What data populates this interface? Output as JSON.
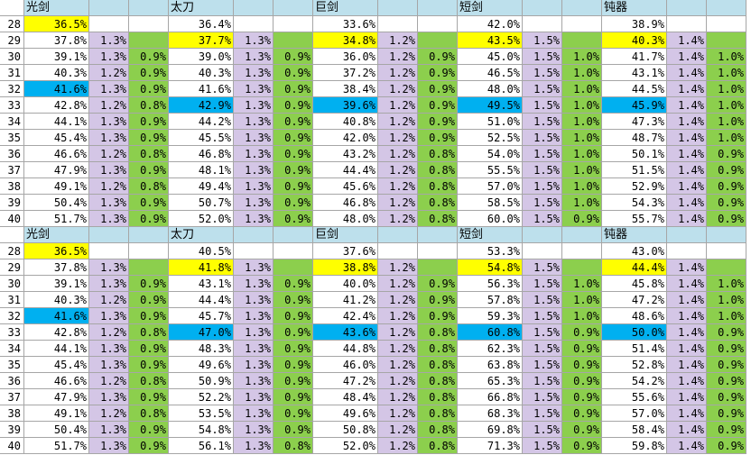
{
  "colors": {
    "header": "#bde0ec",
    "yellow": "#ffff00",
    "blue": "#00b0f0",
    "purple": "#d4c6e6",
    "green": "#8ccf4d",
    "white": "#ffffff"
  },
  "sections": [
    {
      "weapons": [
        {
          "name": "光剑",
          "values": [
            "36.5%",
            "37.8%",
            "39.1%",
            "40.3%",
            "41.6%",
            "42.8%",
            "44.1%",
            "45.4%",
            "46.6%",
            "47.9%",
            "49.1%",
            "50.4%",
            "51.7%"
          ],
          "col2": [
            "",
            "1.3%",
            "1.3%",
            "1.2%",
            "1.3%",
            "1.2%",
            "1.3%",
            "1.3%",
            "1.2%",
            "1.3%",
            "1.2%",
            "1.3%",
            "1.3%"
          ],
          "col3": [
            "",
            "",
            "0.9%",
            "0.9%",
            "0.9%",
            "0.8%",
            "0.9%",
            "0.9%",
            "0.8%",
            "0.9%",
            "0.8%",
            "0.9%",
            "0.9%"
          ],
          "yellow_row": 0,
          "blue_row": 4
        },
        {
          "name": "太刀",
          "values": [
            "36.4%",
            "37.7%",
            "39.0%",
            "40.3%",
            "41.6%",
            "42.9%",
            "44.2%",
            "45.5%",
            "46.8%",
            "48.1%",
            "49.4%",
            "50.7%",
            "52.0%"
          ],
          "col2": [
            "",
            "1.3%",
            "1.3%",
            "1.3%",
            "1.3%",
            "1.3%",
            "1.3%",
            "1.3%",
            "1.3%",
            "1.3%",
            "1.3%",
            "1.3%",
            "1.3%"
          ],
          "col3": [
            "",
            "",
            "0.9%",
            "0.9%",
            "0.9%",
            "0.9%",
            "0.9%",
            "0.9%",
            "0.9%",
            "0.9%",
            "0.9%",
            "0.9%",
            "0.9%"
          ],
          "yellow_row": 1,
          "blue_row": 5
        },
        {
          "name": "巨剑",
          "values": [
            "33.6%",
            "34.8%",
            "36.0%",
            "37.2%",
            "38.4%",
            "39.6%",
            "40.8%",
            "42.0%",
            "43.2%",
            "44.4%",
            "45.6%",
            "46.8%",
            "48.0%"
          ],
          "col2": [
            "",
            "1.2%",
            "1.2%",
            "1.2%",
            "1.2%",
            "1.2%",
            "1.2%",
            "1.2%",
            "1.2%",
            "1.2%",
            "1.2%",
            "1.2%",
            "1.2%"
          ],
          "col3": [
            "",
            "",
            "0.9%",
            "0.9%",
            "0.9%",
            "0.9%",
            "0.9%",
            "0.9%",
            "0.8%",
            "0.8%",
            "0.8%",
            "0.8%",
            "0.8%"
          ],
          "yellow_row": 1,
          "blue_row": 5
        },
        {
          "name": "短剑",
          "values": [
            "42.0%",
            "43.5%",
            "45.0%",
            "46.5%",
            "48.0%",
            "49.5%",
            "51.0%",
            "52.5%",
            "54.0%",
            "55.5%",
            "57.0%",
            "58.5%",
            "60.0%"
          ],
          "col2": [
            "",
            "1.5%",
            "1.5%",
            "1.5%",
            "1.5%",
            "1.5%",
            "1.5%",
            "1.5%",
            "1.5%",
            "1.5%",
            "1.5%",
            "1.5%",
            "1.5%"
          ],
          "col3": [
            "",
            "",
            "1.0%",
            "1.0%",
            "1.0%",
            "1.0%",
            "1.0%",
            "1.0%",
            "1.0%",
            "1.0%",
            "1.0%",
            "1.0%",
            "0.9%"
          ],
          "yellow_row": 1,
          "blue_row": 5
        },
        {
          "name": "钝器",
          "values": [
            "38.9%",
            "40.3%",
            "41.7%",
            "43.1%",
            "44.5%",
            "45.9%",
            "47.3%",
            "48.7%",
            "50.1%",
            "51.5%",
            "52.9%",
            "54.3%",
            "55.7%"
          ],
          "col2": [
            "",
            "1.4%",
            "1.4%",
            "1.4%",
            "1.4%",
            "1.4%",
            "1.4%",
            "1.4%",
            "1.4%",
            "1.4%",
            "1.4%",
            "1.4%",
            "1.4%"
          ],
          "col3": [
            "",
            "",
            "1.0%",
            "1.0%",
            "1.0%",
            "1.0%",
            "1.0%",
            "1.0%",
            "0.9%",
            "0.9%",
            "0.9%",
            "0.9%",
            "0.9%"
          ],
          "yellow_row": 1,
          "blue_row": 5
        }
      ]
    },
    {
      "weapons": [
        {
          "name": "光剑",
          "values": [
            "36.5%",
            "37.8%",
            "39.1%",
            "40.3%",
            "41.6%",
            "42.8%",
            "44.1%",
            "45.4%",
            "46.6%",
            "47.9%",
            "49.1%",
            "50.4%",
            "51.7%"
          ],
          "col2": [
            "",
            "1.3%",
            "1.3%",
            "1.2%",
            "1.3%",
            "1.2%",
            "1.3%",
            "1.3%",
            "1.2%",
            "1.3%",
            "1.2%",
            "1.3%",
            "1.3%"
          ],
          "col3": [
            "",
            "",
            "0.9%",
            "0.9%",
            "0.9%",
            "0.8%",
            "0.9%",
            "0.9%",
            "0.8%",
            "0.9%",
            "0.8%",
            "0.9%",
            "0.9%"
          ],
          "yellow_row": 0,
          "blue_row": 4
        },
        {
          "name": "太刀",
          "values": [
            "40.5%",
            "41.8%",
            "43.1%",
            "44.4%",
            "45.7%",
            "47.0%",
            "48.3%",
            "49.6%",
            "50.9%",
            "52.2%",
            "53.5%",
            "54.8%",
            "56.1%"
          ],
          "col2": [
            "",
            "1.3%",
            "1.3%",
            "1.3%",
            "1.3%",
            "1.3%",
            "1.3%",
            "1.3%",
            "1.3%",
            "1.3%",
            "1.3%",
            "1.3%",
            "1.3%"
          ],
          "col3": [
            "",
            "",
            "0.9%",
            "0.9%",
            "0.9%",
            "0.9%",
            "0.9%",
            "0.9%",
            "0.9%",
            "0.9%",
            "0.9%",
            "0.9%",
            "0.8%"
          ],
          "yellow_row": 1,
          "blue_row": 5
        },
        {
          "name": "巨剑",
          "values": [
            "37.6%",
            "38.8%",
            "40.0%",
            "41.2%",
            "42.4%",
            "43.6%",
            "44.8%",
            "46.0%",
            "47.2%",
            "48.4%",
            "49.6%",
            "50.8%",
            "52.0%"
          ],
          "col2": [
            "",
            "1.2%",
            "1.2%",
            "1.2%",
            "1.2%",
            "1.2%",
            "1.2%",
            "1.2%",
            "1.2%",
            "1.2%",
            "1.2%",
            "1.2%",
            "1.2%"
          ],
          "col3": [
            "",
            "",
            "0.9%",
            "0.9%",
            "0.9%",
            "0.8%",
            "0.8%",
            "0.8%",
            "0.8%",
            "0.8%",
            "0.8%",
            "0.8%",
            "0.8%"
          ],
          "yellow_row": 1,
          "blue_row": 5
        },
        {
          "name": "短剑",
          "values": [
            "53.3%",
            "54.8%",
            "56.3%",
            "57.8%",
            "59.3%",
            "60.8%",
            "62.3%",
            "63.8%",
            "65.3%",
            "66.8%",
            "68.3%",
            "69.8%",
            "71.3%"
          ],
          "col2": [
            "",
            "1.5%",
            "1.5%",
            "1.5%",
            "1.5%",
            "1.5%",
            "1.5%",
            "1.5%",
            "1.5%",
            "1.5%",
            "1.5%",
            "1.5%",
            "1.5%"
          ],
          "col3": [
            "",
            "",
            "1.0%",
            "1.0%",
            "1.0%",
            "0.9%",
            "0.9%",
            "0.9%",
            "0.9%",
            "0.9%",
            "0.9%",
            "0.9%",
            "0.9%"
          ],
          "yellow_row": 1,
          "blue_row": 5
        },
        {
          "name": "钝器",
          "values": [
            "43.0%",
            "44.4%",
            "45.8%",
            "47.2%",
            "48.6%",
            "50.0%",
            "51.4%",
            "52.8%",
            "54.2%",
            "55.6%",
            "57.0%",
            "58.4%",
            "59.8%"
          ],
          "col2": [
            "",
            "1.4%",
            "1.4%",
            "1.4%",
            "1.4%",
            "1.4%",
            "1.4%",
            "1.4%",
            "1.4%",
            "1.4%",
            "1.4%",
            "1.4%",
            "1.4%"
          ],
          "col3": [
            "",
            "",
            "1.0%",
            "1.0%",
            "1.0%",
            "0.9%",
            "0.9%",
            "0.9%",
            "0.9%",
            "0.9%",
            "0.9%",
            "0.9%",
            "0.9%"
          ],
          "yellow_row": 1,
          "blue_row": 5
        }
      ]
    }
  ],
  "row_labels": [
    "28",
    "29",
    "30",
    "31",
    "32",
    "33",
    "34",
    "35",
    "36",
    "37",
    "38",
    "39",
    "40"
  ]
}
